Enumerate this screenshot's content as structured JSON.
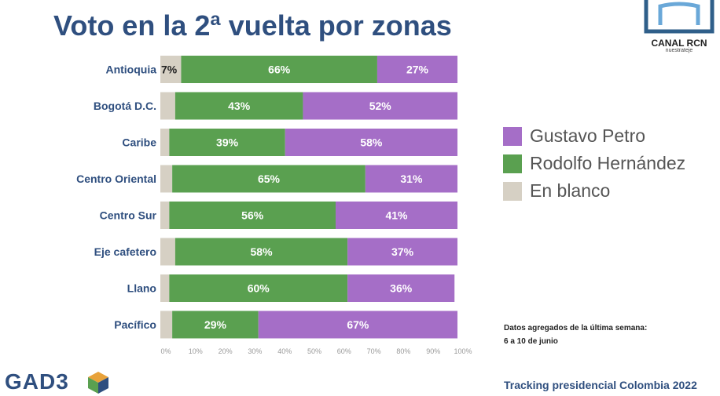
{
  "title": "Voto en la 2ª vuelta por zonas",
  "logo": {
    "brand": "CANAL RCN",
    "tagline": "nuestrateje"
  },
  "chart_data": {
    "type": "bar",
    "orientation": "horizontal",
    "stacked": true,
    "categories": [
      "Antioquia",
      "Bogotá D.C.",
      "Caribe",
      "Centro Oriental",
      "Centro Sur",
      "Eje cafetero",
      "Llano",
      "Pacífico"
    ],
    "series": [
      {
        "name": "En blanco",
        "values": [
          7,
          5,
          3,
          4,
          3,
          5,
          3,
          4
        ],
        "labels": [
          "7%",
          "",
          "",
          "",
          "",
          "",
          "",
          ""
        ],
        "color": "#d6d0c4"
      },
      {
        "name": "Rodolfo Hernández",
        "values": [
          66,
          43,
          39,
          65,
          56,
          58,
          60,
          29
        ],
        "labels": [
          "66%",
          "43%",
          "39%",
          "65%",
          "56%",
          "58%",
          "60%",
          "29%"
        ],
        "color": "#5aa050"
      },
      {
        "name": "Gustavo Petro",
        "values": [
          27,
          52,
          58,
          31,
          41,
          37,
          36,
          67
        ],
        "labels": [
          "27%",
          "52%",
          "58%",
          "31%",
          "41%",
          "37%",
          "36%",
          "67%"
        ],
        "color": "#a56ec7"
      }
    ],
    "xlim": [
      0,
      100
    ],
    "xticks": [
      "0%",
      "10%",
      "20%",
      "30%",
      "40%",
      "50%",
      "60%",
      "70%",
      "80%",
      "90%",
      "100%"
    ],
    "legend_position": "right"
  },
  "legend": [
    {
      "label": "Gustavo Petro",
      "color": "#a56ec7"
    },
    {
      "label": "Rodolfo Hernández",
      "color": "#5aa050"
    },
    {
      "label": "En blanco",
      "color": "#d6d0c4"
    }
  ],
  "note": {
    "line1": "Datos agregados de la última semana:",
    "line2": "6 a 10 de junio"
  },
  "gad3": {
    "text": "GAD3"
  },
  "footer": "Tracking presidencial Colombia 2022"
}
